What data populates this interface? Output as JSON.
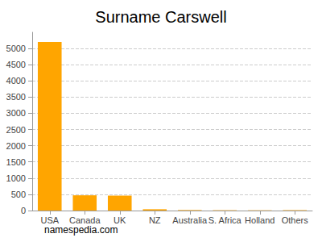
{
  "chart_data": {
    "type": "bar",
    "title": "Surname Carswell",
    "categories": [
      "USA",
      "Canada",
      "UK",
      "NZ",
      "Australia",
      "S. Africa",
      "Holland",
      "Others"
    ],
    "values": [
      5200,
      470,
      460,
      40,
      15,
      10,
      8,
      12
    ],
    "color": "#ffa500",
    "ylim": [
      0,
      5500
    ],
    "yticks": [
      0,
      500,
      1000,
      1500,
      2000,
      2500,
      3000,
      3500,
      4000,
      4500,
      5000
    ],
    "grid": true,
    "annotations": [
      "namespedia.com"
    ]
  }
}
